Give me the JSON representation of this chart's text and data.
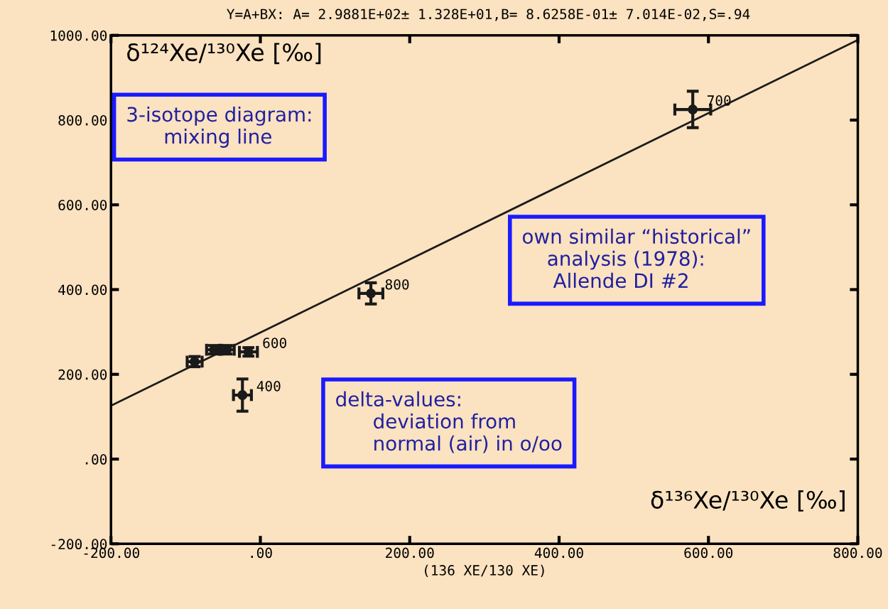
{
  "chart_data": {
    "type": "scatter",
    "title": "Y=A+BX: A= 2.9881E+02± 1.328E+01,B= 8.6258E-01± 7.014E-02,S=.94",
    "ylabel": "δ¹²⁴Xe/¹³⁰Xe [‰]",
    "xlabel": "(136 XE/130 XE)",
    "xlim": [
      -200,
      800
    ],
    "ylim": [
      -200,
      1000
    ],
    "xticks": [
      {
        "value": -200,
        "label": "-200.00"
      },
      {
        "value": 0,
        "label": ".00"
      },
      {
        "value": 200,
        "label": "200.00"
      },
      {
        "value": 400,
        "label": "400.00"
      },
      {
        "value": 600,
        "label": "600.00"
      },
      {
        "value": 800,
        "label": "800.00"
      }
    ],
    "yticks": [
      {
        "value": -200,
        "label": "-200.00"
      },
      {
        "value": 0,
        "label": ".00"
      },
      {
        "value": 200,
        "label": "200.00"
      },
      {
        "value": 400,
        "label": "400.00"
      },
      {
        "value": 600,
        "label": "600.00"
      },
      {
        "value": 800,
        "label": "800.00"
      },
      {
        "value": 1000,
        "label": "1000.00"
      }
    ],
    "grid": false,
    "series": [
      {
        "marker": "circle",
        "color": "#1a1a1a",
        "x": [
          -88,
          -62,
          -45,
          -16,
          -24,
          148,
          579
        ],
        "values": [
          230,
          258,
          258,
          253,
          151,
          391,
          825
        ],
        "errors": [
          12,
          10,
          10,
          10,
          38,
          25,
          43
        ],
        "xerrors": [
          10,
          10,
          10,
          12,
          12,
          16,
          24
        ]
      },
      {
        "type": "line",
        "color": "#1a1a1a",
        "x": [
          -200,
          800
        ],
        "values": [
          126,
          989
        ],
        "line_style": "solid",
        "marker": "none"
      }
    ],
    "annotations": [
      {
        "text": "600",
        "x": -16,
        "y": 253
      },
      {
        "text": "400",
        "x": -24,
        "y": 151
      },
      {
        "text": "800",
        "x": 148,
        "y": 391
      },
      {
        "text": "700",
        "x": 579,
        "y": 825
      },
      "3-isotope diagram:\n      mixing line",
      "own similar “historical”\n    analysis (1978):\n     Allende DI #2",
      "delta-values:\n      deviation from\n      normal (air) in o/oo",
      "δ¹³⁶Xe/¹³⁰Xe [‰]"
    ]
  }
}
